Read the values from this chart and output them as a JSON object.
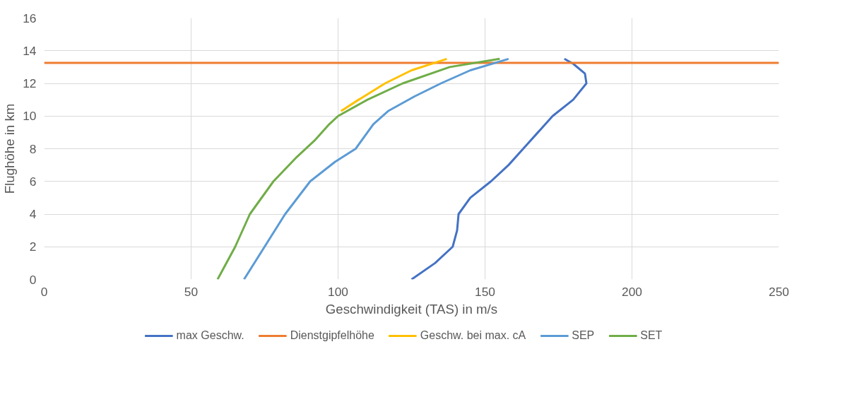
{
  "chart_data": {
    "type": "line",
    "xlabel": "Geschwindigkeit (TAS) in m/s",
    "ylabel": "Flughöhe in km",
    "xlim": [
      0,
      250
    ],
    "ylim": [
      0,
      16
    ],
    "xticks": [
      0,
      50,
      100,
      150,
      200,
      250
    ],
    "yticks": [
      0,
      2,
      4,
      6,
      8,
      10,
      12,
      14,
      16
    ],
    "grid": true,
    "legend": "bottom",
    "marker": "none",
    "line_style": "solid",
    "series": [
      {
        "name": "max Geschw.",
        "color": "#4472c4",
        "x": [
          125,
          133,
          139,
          140.5,
          141,
          145,
          152,
          158,
          163,
          168,
          173,
          180,
          184.5,
          184,
          180,
          177
        ],
        "values": [
          0,
          1,
          2,
          3,
          4,
          5,
          6,
          7,
          8,
          9,
          10,
          11,
          12,
          12.6,
          13.2,
          13.5
        ]
      },
      {
        "name": "Dienstgipfelhöhe",
        "color": "#ed7d31",
        "x": [
          0,
          250
        ],
        "values": [
          13.25,
          13.25
        ]
      },
      {
        "name": "Geschw. bei max. cA",
        "color": "#ffc000",
        "x": [
          101,
          107,
          116,
          125,
          137
        ],
        "values": [
          10.3,
          11,
          12,
          12.8,
          13.5
        ]
      },
      {
        "name": "SEP",
        "color": "#5b9bd5",
        "x": [
          68,
          75,
          82,
          90.5,
          99,
          106,
          112,
          117,
          126,
          135,
          145,
          158
        ],
        "values": [
          0,
          2,
          4,
          6,
          7.2,
          8,
          9.5,
          10.3,
          11.2,
          12,
          12.8,
          13.5
        ]
      },
      {
        "name": "SET",
        "color": "#70ad47",
        "x": [
          59,
          65,
          70,
          78,
          86,
          92,
          97,
          100,
          110,
          122,
          138,
          155
        ],
        "values": [
          0,
          2,
          4,
          6,
          7.5,
          8.5,
          9.5,
          10,
          11,
          12,
          13,
          13.5
        ]
      }
    ]
  }
}
